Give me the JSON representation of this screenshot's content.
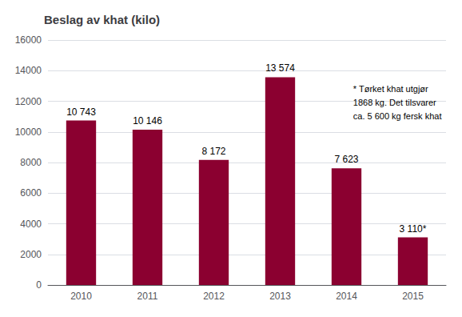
{
  "chart_data": {
    "type": "bar",
    "title": "Beslag av khat (kilo)",
    "categories": [
      "2010",
      "2011",
      "2012",
      "2013",
      "2014",
      "2015"
    ],
    "values": [
      10743,
      10146,
      8172,
      13574,
      7623,
      3110
    ],
    "value_labels": [
      "10 743",
      "10 146",
      "8 172",
      "13 574",
      "7 623",
      "3 110*"
    ],
    "data_labels": true,
    "color": "#8B0030",
    "ylim": [
      0,
      16000
    ],
    "yticks": [
      0,
      2000,
      4000,
      6000,
      8000,
      10000,
      12000,
      14000,
      16000
    ],
    "grid": true,
    "annotation": "* Tørket khat utgjør\n1868 kg. Det tilsvarer\nca. 5 600 kg fersk khat"
  }
}
